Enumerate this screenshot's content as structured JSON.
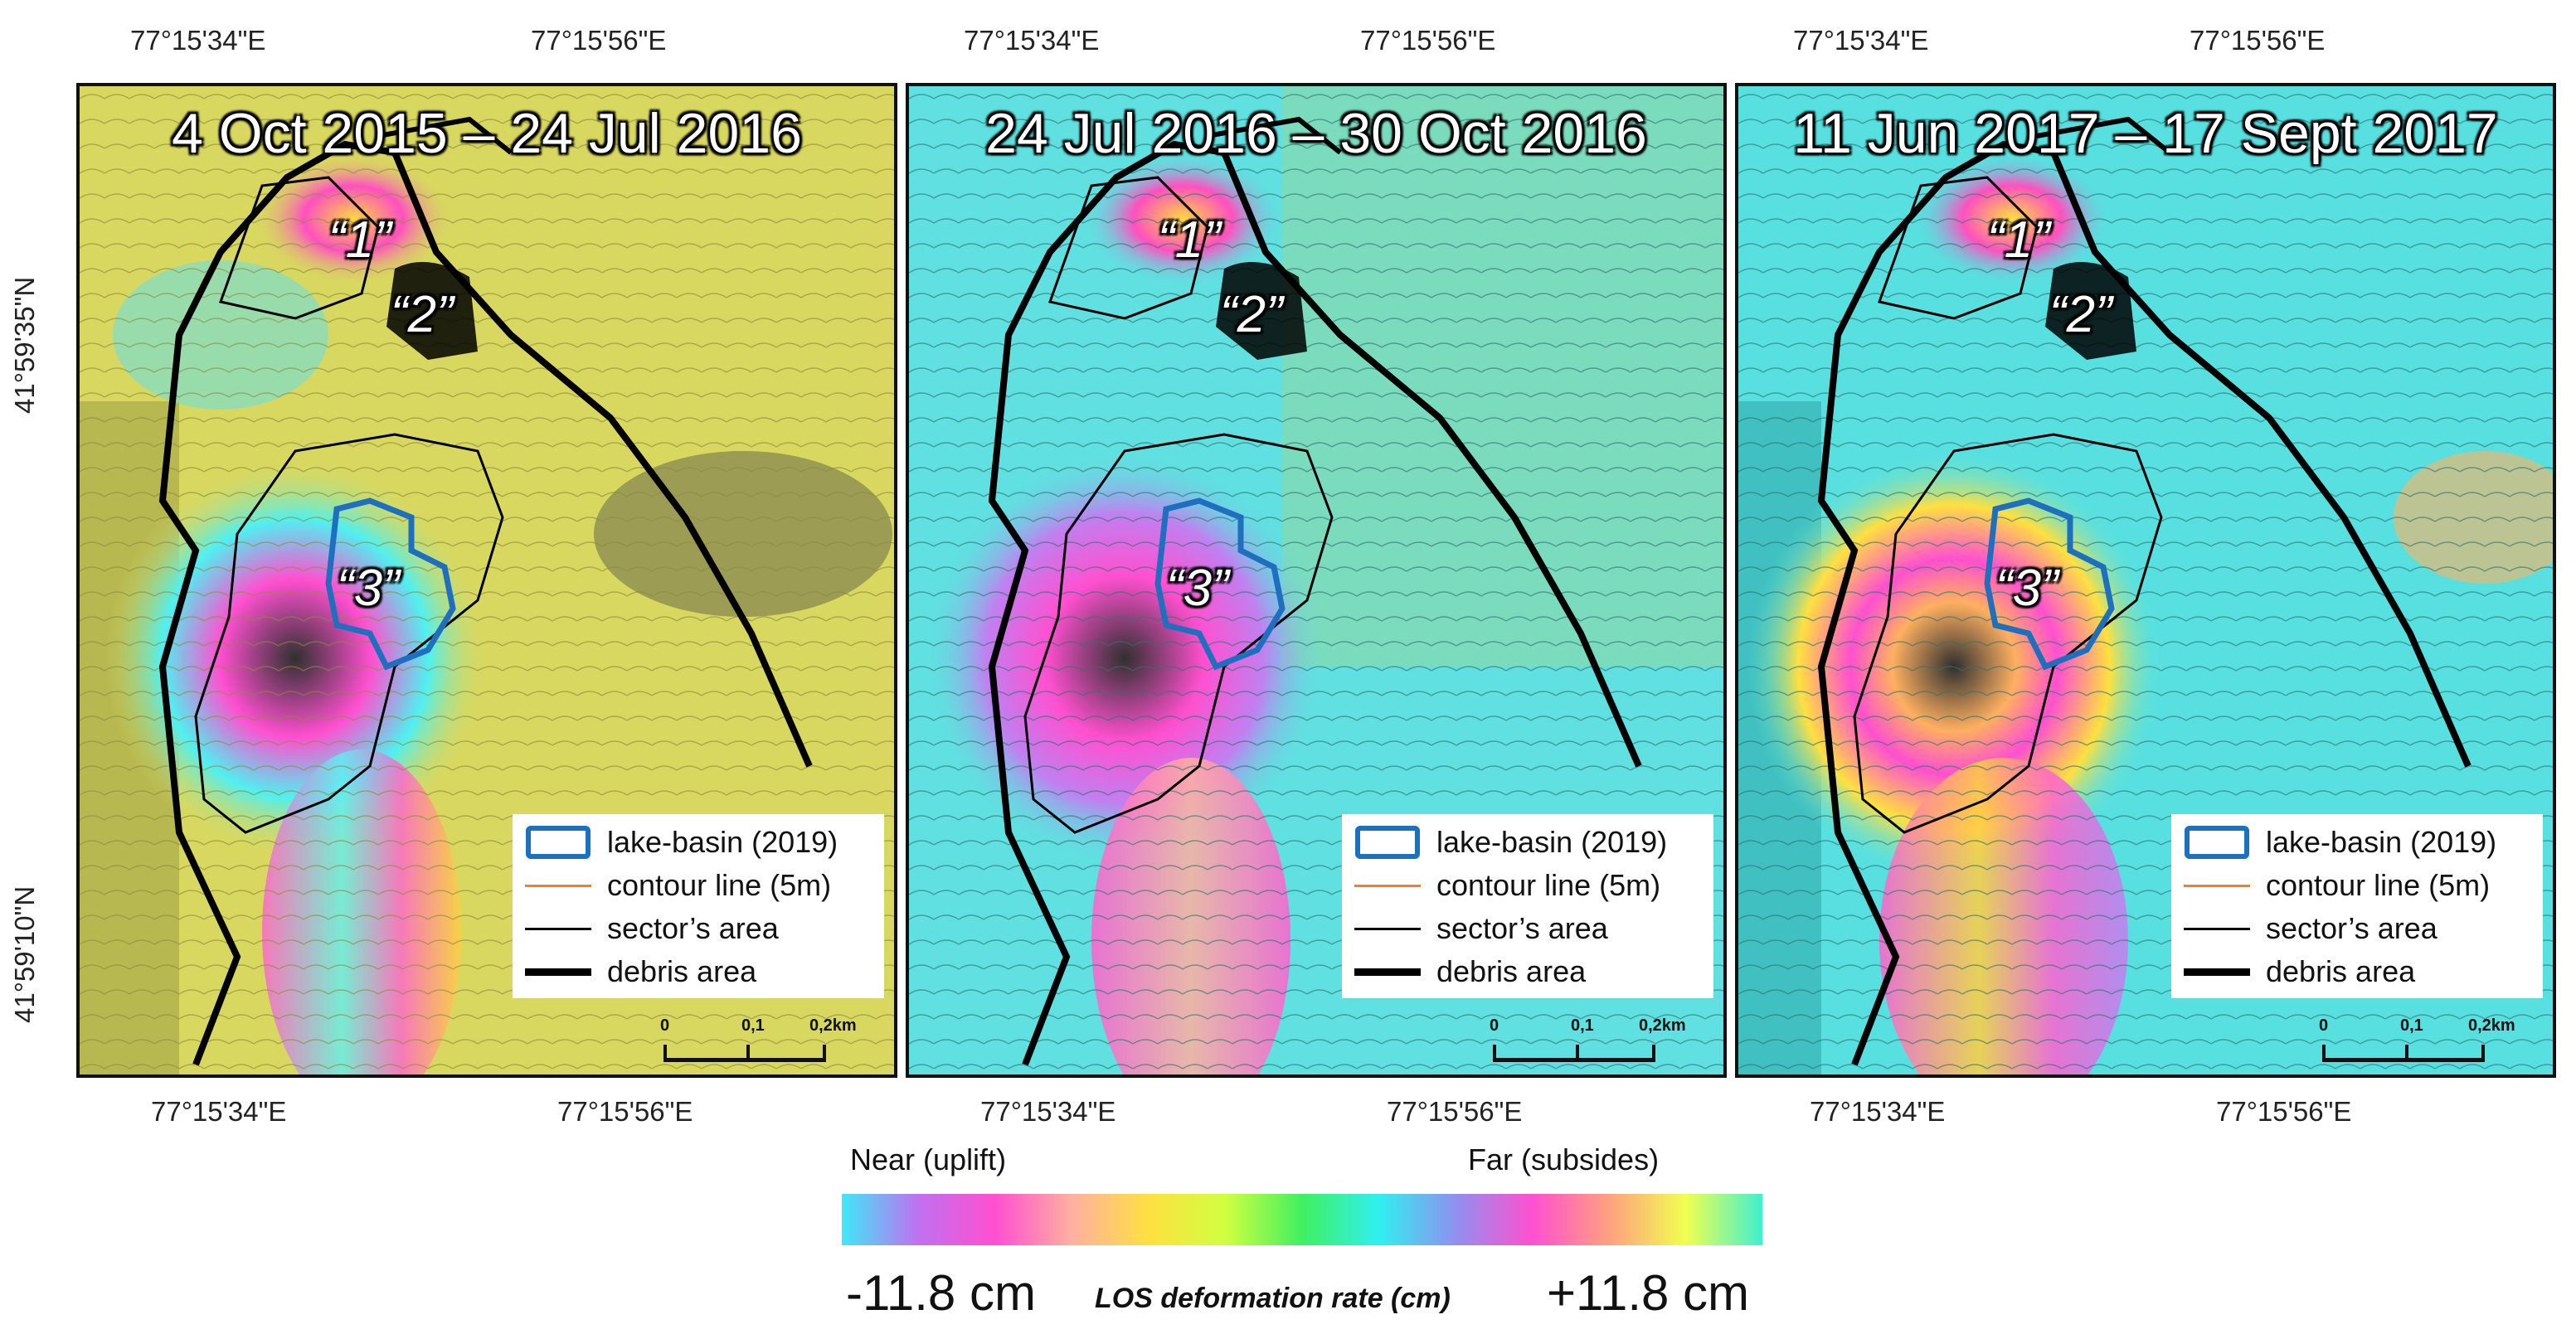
{
  "coordinates": {
    "top_lon": [
      "77°15'34\"E",
      "77°15'56\"E"
    ],
    "bottom_lon": [
      "77°15'34\"E",
      "77°15'56\"E"
    ],
    "left_lat": [
      "41°59'35\"N",
      "41°59'10\"N"
    ]
  },
  "panels": [
    {
      "title": "4 Oct 2015 – 24 Jul 2016",
      "labels": [
        "“1”",
        "“2”",
        "“3”"
      ]
    },
    {
      "title": "24 Jul 2016 – 30 Oct 2016",
      "labels": [
        "“1”",
        "“2”",
        "“3”"
      ]
    },
    {
      "title": "11 Jun 2017 – 17 Sept 2017",
      "labels": [
        "“1”",
        "“2”",
        "“3”"
      ]
    }
  ],
  "legend": {
    "items": [
      {
        "label": "lake-basin (2019)",
        "symbol": "blue-outline-box",
        "color": "#1f6fbf"
      },
      {
        "label": "contour line (5m)",
        "symbol": "orange-line",
        "color": "#f08030"
      },
      {
        "label": "sector’s area",
        "symbol": "thin-black-line",
        "color": "#000000"
      },
      {
        "label": "debris area",
        "symbol": "thick-black-line",
        "color": "#000000"
      }
    ]
  },
  "scalebar": {
    "labels": [
      "0",
      "0,1",
      "0,2km"
    ]
  },
  "colorbar": {
    "left_label": "Near (uplift)",
    "right_label": "Far (subsides)",
    "min": "-11.8 cm",
    "max": "+11.8 cm",
    "title": "LOS deformation rate (cm)",
    "stops": [
      "#40e8f8",
      "#c070f0",
      "#ff50d0",
      "#ffb0a0",
      "#ffe040",
      "#d0ff40",
      "#40f060",
      "#30f0f0",
      "#9090f0",
      "#ff50d0",
      "#ffa080",
      "#f0ff50",
      "#40f0d0"
    ]
  },
  "colors": {
    "panel1_base": "#d8d860",
    "panel2_base": "#60e0e0",
    "panel3_base": "#58e0e0",
    "lake_basin": "#1f6fbf",
    "debris": "#000000"
  }
}
